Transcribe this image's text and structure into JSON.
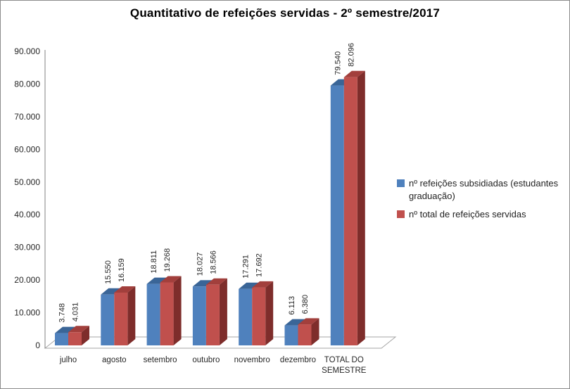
{
  "chart_data": {
    "type": "bar",
    "style": "3d-clustered-column",
    "title": "Quantitativo de refeições servidas - 2º semestre/2017",
    "categories": [
      "julho",
      "agosto",
      "setembro",
      "outubro",
      "novembro",
      "dezembro",
      "TOTAL DO\nSEMESTRE"
    ],
    "series": [
      {
        "name": "nº refeições subsidiadas (estudantes graduação)",
        "color": "#4F81BD",
        "top_color": "#3A6597",
        "side_color": "#2C4D74",
        "values": [
          3748,
          15550,
          18811,
          18027,
          17291,
          6113,
          79540
        ],
        "labels": [
          "3.748",
          "15.550",
          "18.811",
          "18.027",
          "17.291",
          "6.113",
          "79.540"
        ]
      },
      {
        "name": "nº total de refeições servidas",
        "color": "#C0504D",
        "top_color": "#A23F3C",
        "side_color": "#7E2D2B",
        "values": [
          4031,
          16159,
          19268,
          18566,
          17692,
          6380,
          82096
        ],
        "labels": [
          "4.031",
          "16.159",
          "19.268",
          "18.566",
          "17.692",
          "6.380",
          "82.096"
        ]
      }
    ],
    "y_axis": {
      "min": 0,
      "max": 90000,
      "step": 10000,
      "tick_labels": [
        "0",
        "10.000",
        "20.000",
        "30.000",
        "40.000",
        "50.000",
        "60.000",
        "70.000",
        "80.000",
        "90.000"
      ]
    },
    "gridlines": false,
    "legend_position": "right",
    "axis_color": "#808080",
    "floor_edge_color": "#A6A6A6",
    "label_text_color": "#262626"
  }
}
